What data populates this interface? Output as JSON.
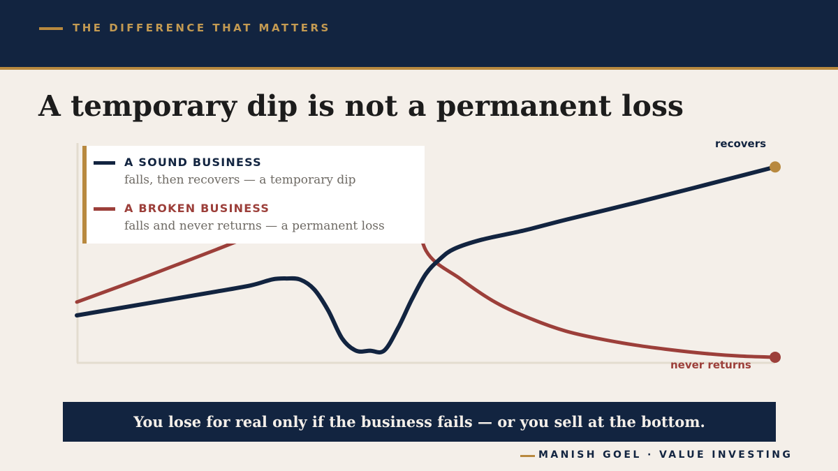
{
  "header": {
    "kicker": "THE DIFFERENCE THAT MATTERS",
    "title": "A temporary dip is not a permanent loss"
  },
  "colors": {
    "navy": "#122440",
    "gold": "#b8893f",
    "red": "#9c3f3a",
    "background": "#f4efe9"
  },
  "chart_data": {
    "type": "line",
    "title": "",
    "xlabel": "",
    "ylabel": "",
    "grid": false,
    "axes_ticks": false,
    "legend_position": "top-left",
    "series": [
      {
        "name": "A SOUND BUSINESS",
        "description": "falls, then recovers — a temporary dip",
        "end_label": "recovers",
        "color": "#122440",
        "points": [
          [
            0,
            0.203
          ],
          [
            10,
            0.254
          ],
          [
            20,
            0.305
          ],
          [
            25,
            0.332
          ],
          [
            28,
            0.357
          ],
          [
            30,
            0.361
          ],
          [
            32,
            0.356
          ],
          [
            34,
            0.314
          ],
          [
            36,
            0.224
          ],
          [
            38,
            0.104
          ],
          [
            40,
            0.052
          ],
          [
            42,
            0.052
          ],
          [
            44,
            0.052
          ],
          [
            46,
            0.149
          ],
          [
            48,
            0.273
          ],
          [
            50,
            0.381
          ],
          [
            52,
            0.444
          ],
          [
            54,
            0.487
          ],
          [
            58,
            0.527
          ],
          [
            64,
            0.566
          ],
          [
            70,
            0.612
          ],
          [
            80,
            0.685
          ],
          [
            90,
            0.761
          ],
          [
            100,
            0.838
          ]
        ]
      },
      {
        "name": "A BROKEN BUSINESS",
        "description": "falls and never returns — a permanent loss",
        "end_label": "never returns",
        "color": "#9c3f3a",
        "points": [
          [
            0,
            0.26
          ],
          [
            10,
            0.37
          ],
          [
            20,
            0.485
          ],
          [
            30,
            0.6
          ],
          [
            40,
            0.69
          ],
          [
            45,
            0.725
          ],
          [
            48,
            0.728
          ],
          [
            50,
            0.48
          ],
          [
            55,
            0.358
          ],
          [
            60,
            0.258
          ],
          [
            65,
            0.189
          ],
          [
            70,
            0.136
          ],
          [
            75,
            0.102
          ],
          [
            80,
            0.076
          ],
          [
            85,
            0.056
          ],
          [
            90,
            0.04
          ],
          [
            95,
            0.029
          ],
          [
            100,
            0.024
          ]
        ]
      }
    ]
  },
  "banner": {
    "text": "You lose for real only if the business fails — or you sell at the bottom."
  },
  "footer": {
    "author": "MANISH GOEL",
    "separator": "·",
    "topic": "VALUE INVESTING"
  }
}
